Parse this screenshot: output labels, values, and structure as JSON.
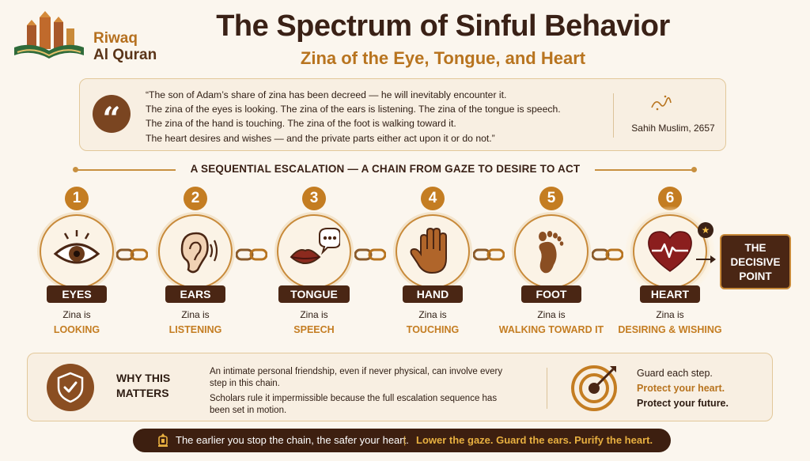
{
  "brand": {
    "line1": "Riwaq",
    "line2": "Al Quran"
  },
  "title": "The Spectrum of Sinful Behavior",
  "subtitle": "Zina of the Eye, Tongue, and Heart",
  "quote": {
    "lines": [
      "“The son of Adam’s share of zina has been decreed — he will inevitably encounter it.",
      "The zina of the eyes is looking. The zina of the ears is listening. The zina of the tongue is speech.",
      "The zina of the hand is touching. The zina of the foot is walking toward it.",
      "The heart desires and wishes — and the private parts either act upon it or do not.”"
    ],
    "source": "Sahih Muslim, 2657"
  },
  "banner": "A SEQUENTIAL ESCALATION — A CHAIN FROM GAZE TO DESIRE TO ACT",
  "steps": [
    {
      "num": "1",
      "label": "EYES",
      "cap": "Zina is",
      "act": "LOOKING",
      "icon": "eye-icon"
    },
    {
      "num": "2",
      "label": "EARS",
      "cap": "Zina is",
      "act": "LISTENING",
      "icon": "ear-icon"
    },
    {
      "num": "3",
      "label": "TONGUE",
      "cap": "Zina is",
      "act": "SPEECH",
      "icon": "lips-speech-icon"
    },
    {
      "num": "4",
      "label": "HAND",
      "cap": "Zina is",
      "act": "TOUCHING",
      "icon": "hand-icon"
    },
    {
      "num": "5",
      "label": "FOOT",
      "cap": "Zina is",
      "act": "WALKING TOWARD IT",
      "icon": "footprint-icon"
    },
    {
      "num": "6",
      "label": "HEART",
      "cap": "Zina is",
      "act": "DESIRING & WISHING",
      "icon": "heart-pulse-icon"
    }
  ],
  "decisive": {
    "l1": "THE",
    "l2": "DECISIVE",
    "l3": "POINT"
  },
  "why": {
    "title_l1": "WHY THIS",
    "title_l2": "MATTERS",
    "p1": "An intimate personal friendship, even if never physical, can involve every step in this chain.",
    "p2": "Scholars rule it impermissible because the full escalation sequence has been set in motion."
  },
  "guard": {
    "g1": "Guard each step.",
    "g2": "Protect your heart.",
    "g3": "Protect your future."
  },
  "footer": {
    "f1": "The earlier you stop the chain, the safer your heart.",
    "sep": "|",
    "f2": "Lower the gaze. Guard the ears. Purify the heart."
  },
  "colors": {
    "brown": "#4a2614",
    "accent": "#c47d22",
    "heart": "#8b1e1e",
    "background": "#fbf6ee"
  }
}
